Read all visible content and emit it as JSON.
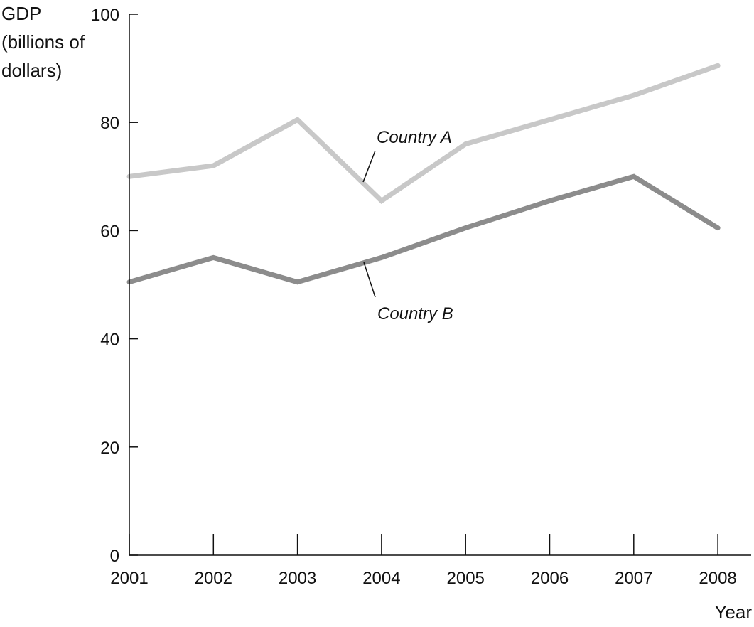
{
  "chart_data": {
    "type": "line",
    "ylabel_lines": [
      "GDP",
      "(billions of",
      "dollars)"
    ],
    "xlabel": "Year",
    "x": [
      "2001",
      "2002",
      "2003",
      "2004",
      "2005",
      "2006",
      "2007",
      "2008"
    ],
    "y_ticks": [
      "0",
      "20",
      "40",
      "60",
      "80",
      "100"
    ],
    "ylim": [
      0,
      100
    ],
    "grid": false,
    "series": [
      {
        "name": "Country A",
        "color": "#c8c8c8",
        "values": [
          70,
          72,
          80.5,
          65.5,
          76,
          80.5,
          85,
          90.5
        ]
      },
      {
        "name": "Country B",
        "color": "#8c8c8c",
        "values": [
          50.5,
          55,
          50.5,
          55,
          60.5,
          65.5,
          70,
          60.5
        ]
      }
    ]
  }
}
